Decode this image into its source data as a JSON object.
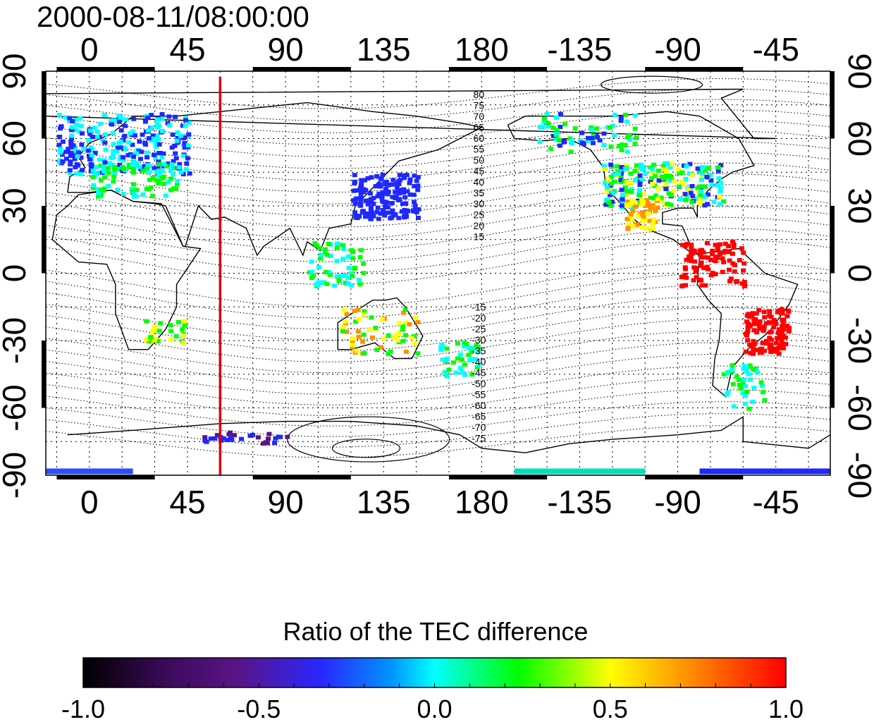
{
  "title": "2000-08-11/08:00:00",
  "map": {
    "lon_ticks_top": [
      "0",
      "45",
      "90",
      "135",
      "180",
      "-135",
      "-90",
      "-45"
    ],
    "lon_ticks_bottom": [
      "0",
      "45",
      "90",
      "135",
      "180",
      "-135",
      "-90",
      "-45"
    ],
    "lat_ticks_left": [
      "90",
      "60",
      "30",
      "0",
      "-30",
      "-60",
      "-90"
    ],
    "lat_ticks_right": [
      "90",
      "60",
      "30",
      "0",
      "-30",
      "-60",
      "-90"
    ],
    "lon_range": [
      -20,
      340
    ],
    "lat_range": [
      -90,
      90
    ],
    "grid": true,
    "meridian_line": {
      "lon": 60,
      "color": "#dd0000"
    },
    "contour_labels_north": [
      "80",
      "75",
      "70",
      "65",
      "60",
      "55",
      "50",
      "45",
      "40",
      "35",
      "30",
      "25",
      "20",
      "15"
    ],
    "contour_labels_south": [
      "-15",
      "-20",
      "-25",
      "-30",
      "-35",
      "-40",
      "-45",
      "-50",
      "-55",
      "-60",
      "-65",
      "-70",
      "-75"
    ]
  },
  "colorbar": {
    "title": "Ratio of the TEC difference",
    "ticks": [
      "-1.0",
      "-0.5",
      "0.0",
      "0.5",
      "1.0"
    ],
    "range": [
      -1.0,
      1.0
    ],
    "colors": [
      "#000000",
      "#5a1488",
      "#1e28ff",
      "#00ffff",
      "#00ff00",
      "#ffff00",
      "#ff9000",
      "#ff0000"
    ]
  }
}
